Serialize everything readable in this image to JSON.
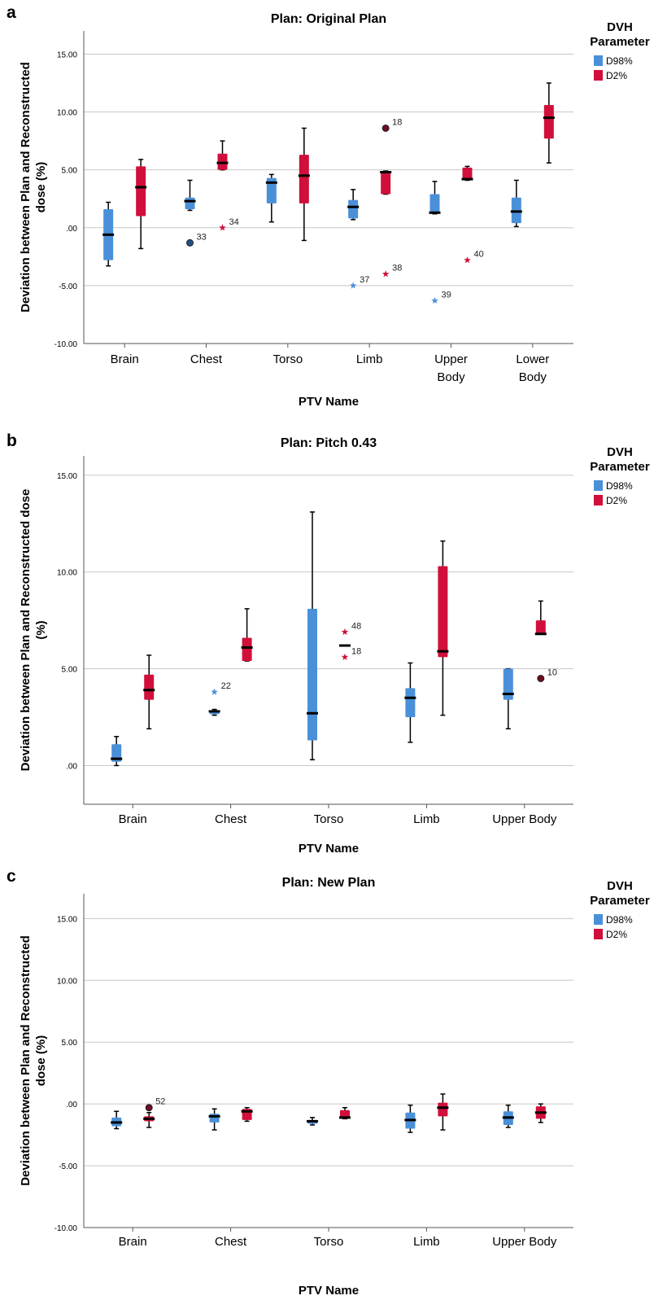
{
  "figure": {
    "colors": {
      "D98%": "#4a90d9",
      "D2%": "#d0103a",
      "grid": "#c8c8c8",
      "axis": "#555555"
    }
  },
  "chart_data": [
    {
      "panel_label": "a",
      "title": "Plan: Original Plan",
      "type": "box",
      "xlabel": "PTV Name",
      "ylabel": "Deviation between Plan and Reconstructed dose (%)",
      "ylabel_lines": [
        "Deviation between Plan and Reconstructed",
        "dose (%)"
      ],
      "ylim": [
        -10,
        17
      ],
      "yticks": [
        15,
        10,
        5,
        0,
        -5,
        -10
      ],
      "ytick_labels": [
        "15.00",
        "10.00",
        "5.00",
        ".00",
        "-5.00",
        "-10.00"
      ],
      "grid": true,
      "legend": {
        "title_lines": [
          "DVH",
          "Parameter"
        ],
        "entries": [
          "D98%",
          "D2%"
        ],
        "placement": "right"
      },
      "categories": [
        [
          "Brain"
        ],
        [
          "Chest"
        ],
        [
          "Torso"
        ],
        [
          "Limb"
        ],
        [
          "Upper",
          "Body"
        ],
        [
          "Lower",
          "Body"
        ]
      ],
      "series": [
        {
          "name": "D98%",
          "boxes": [
            {
              "min": -3.3,
              "q1": -2.8,
              "median": -0.6,
              "q3": 1.6,
              "max": 2.2,
              "outliers": []
            },
            {
              "min": 1.5,
              "q1": 1.6,
              "median": 2.3,
              "q3": 2.6,
              "max": 4.1,
              "outliers": [
                {
                  "value": -1.3,
                  "label": "33",
                  "marker": "circle"
                }
              ]
            },
            {
              "min": 0.5,
              "q1": 2.1,
              "median": 3.9,
              "q3": 4.3,
              "max": 4.6,
              "outliers": []
            },
            {
              "min": 0.7,
              "q1": 0.8,
              "median": 1.8,
              "q3": 2.4,
              "max": 3.3,
              "outliers": [
                {
                  "value": -5.0,
                  "label": "37",
                  "marker": "star"
                }
              ]
            },
            {
              "min": 1.2,
              "q1": 1.3,
              "median": 1.3,
              "q3": 2.9,
              "max": 4.0,
              "outliers": [
                {
                  "value": -6.3,
                  "label": "39",
                  "marker": "star"
                }
              ]
            },
            {
              "min": 0.1,
              "q1": 0.4,
              "median": 1.4,
              "q3": 2.6,
              "max": 4.1,
              "outliers": []
            }
          ]
        },
        {
          "name": "D2%",
          "boxes": [
            {
              "min": -1.8,
              "q1": 1.0,
              "median": 3.5,
              "q3": 5.3,
              "max": 5.9,
              "outliers": []
            },
            {
              "min": 5.0,
              "q1": 5.0,
              "median": 5.6,
              "q3": 6.4,
              "max": 7.5,
              "outliers": [
                {
                  "value": 0.0,
                  "label": "34",
                  "marker": "star"
                }
              ]
            },
            {
              "min": -1.1,
              "q1": 2.1,
              "median": 4.5,
              "q3": 6.3,
              "max": 8.6,
              "outliers": []
            },
            {
              "min": 2.9,
              "q1": 2.9,
              "median": 4.8,
              "q3": 4.9,
              "max": 4.9,
              "outliers": [
                {
                  "value": 8.6,
                  "label": "18",
                  "marker": "circle"
                },
                {
                  "value": -4.0,
                  "label": "38",
                  "marker": "star"
                }
              ]
            },
            {
              "min": 4.1,
              "q1": 4.1,
              "median": 4.2,
              "q3": 5.2,
              "max": 5.3,
              "outliers": [
                {
                  "value": -2.8,
                  "label": "40",
                  "marker": "star"
                }
              ]
            },
            {
              "min": 5.6,
              "q1": 7.7,
              "median": 9.5,
              "q3": 10.6,
              "max": 12.5,
              "outliers": []
            }
          ]
        }
      ]
    },
    {
      "panel_label": "b",
      "title": "Plan: Pitch 0.43",
      "type": "box",
      "xlabel": "PTV Name",
      "ylabel": "Deviation between Plan and Reconstructed dose (%)",
      "ylabel_lines": [
        "Deviation between Plan and Reconstructed dose",
        "(%)"
      ],
      "ylim": [
        -2,
        16
      ],
      "yticks": [
        15,
        10,
        5,
        0
      ],
      "ytick_labels": [
        "15.00",
        "10.00",
        "5.00",
        ".00"
      ],
      "grid": true,
      "legend": {
        "title_lines": [
          "DVH",
          "Parameter"
        ],
        "entries": [
          "D98%",
          "D2%"
        ],
        "placement": "right"
      },
      "categories": [
        [
          "Brain"
        ],
        [
          "Chest"
        ],
        [
          "Torso"
        ],
        [
          "Limb"
        ],
        [
          "Upper Body"
        ]
      ],
      "series": [
        {
          "name": "D98%",
          "boxes": [
            {
              "min": 0.0,
              "q1": 0.2,
              "median": 0.35,
              "q3": 1.1,
              "max": 1.5,
              "outliers": []
            },
            {
              "min": 2.6,
              "q1": 2.65,
              "median": 2.8,
              "q3": 2.85,
              "max": 2.9,
              "outliers": [
                {
                  "value": 3.8,
                  "label": "22",
                  "marker": "star"
                }
              ]
            },
            {
              "min": 0.3,
              "q1": 1.3,
              "median": 2.7,
              "q3": 8.1,
              "max": 13.1,
              "outliers": []
            },
            {
              "min": 1.2,
              "q1": 2.5,
              "median": 3.5,
              "q3": 4.0,
              "max": 5.3,
              "outliers": []
            },
            {
              "min": 1.9,
              "q1": 3.4,
              "median": 3.7,
              "q3": 5.0,
              "max": 5.0,
              "outliers": []
            }
          ]
        },
        {
          "name": "D2%",
          "boxes": [
            {
              "min": 1.9,
              "q1": 3.4,
              "median": 3.9,
              "q3": 4.7,
              "max": 5.7,
              "outliers": []
            },
            {
              "min": 5.4,
              "q1": 5.4,
              "median": 6.1,
              "q3": 6.6,
              "max": 8.1,
              "outliers": []
            },
            {
              "min": 6.2,
              "q1": 6.2,
              "median": 6.2,
              "q3": 6.2,
              "max": 6.2,
              "outliers": [
                {
                  "value": 6.9,
                  "label": "48",
                  "marker": "star"
                },
                {
                  "value": 5.6,
                  "label": "18",
                  "marker": "star"
                }
              ]
            },
            {
              "min": 2.6,
              "q1": 5.6,
              "median": 5.9,
              "q3": 10.3,
              "max": 11.6,
              "outliers": []
            },
            {
              "min": 6.8,
              "q1": 6.8,
              "median": 6.8,
              "q3": 7.5,
              "max": 8.5,
              "outliers": [
                {
                  "value": 4.5,
                  "label": "10",
                  "marker": "circle"
                }
              ]
            }
          ]
        }
      ]
    },
    {
      "panel_label": "c",
      "title": "Plan: New Plan",
      "type": "box",
      "xlabel": "PTV Name",
      "ylabel": "Deviation between Plan and Reconstructed dose (%)",
      "ylabel_lines": [
        "Deviation between Plan and Reconstructed",
        "dose (%)"
      ],
      "ylim": [
        -10,
        17
      ],
      "yticks": [
        15,
        10,
        5,
        0,
        -5,
        -10
      ],
      "ytick_labels": [
        "15.00",
        "10.00",
        "5.00",
        ".00",
        "-5.00",
        "-10.00"
      ],
      "grid": true,
      "legend": {
        "title_lines": [
          "DVH",
          "Parameter"
        ],
        "entries": [
          "D98%",
          "D2%"
        ],
        "placement": "right"
      },
      "categories": [
        [
          "Brain"
        ],
        [
          "Chest"
        ],
        [
          "Torso"
        ],
        [
          "Limb"
        ],
        [
          "Upper Body"
        ]
      ],
      "series": [
        {
          "name": "D98%",
          "boxes": [
            {
              "min": -2.0,
              "q1": -1.8,
              "median": -1.5,
              "q3": -1.1,
              "max": -0.6,
              "outliers": []
            },
            {
              "min": -2.1,
              "q1": -1.5,
              "median": -1.0,
              "q3": -0.8,
              "max": -0.4,
              "outliers": []
            },
            {
              "min": -1.7,
              "q1": -1.6,
              "median": -1.4,
              "q3": -1.3,
              "max": -1.1,
              "outliers": []
            },
            {
              "min": -2.3,
              "q1": -2.0,
              "median": -1.3,
              "q3": -0.7,
              "max": -0.1,
              "outliers": []
            },
            {
              "min": -1.9,
              "q1": -1.7,
              "median": -1.1,
              "q3": -0.6,
              "max": -0.1,
              "outliers": []
            }
          ]
        },
        {
          "name": "D2%",
          "boxes": [
            {
              "min": -1.9,
              "q1": -1.4,
              "median": -1.2,
              "q3": -1.0,
              "max": -0.7,
              "outliers": [
                {
                  "value": -0.3,
                  "label": "52",
                  "marker": "circle"
                }
              ]
            },
            {
              "min": -1.4,
              "q1": -1.3,
              "median": -0.6,
              "q3": -0.4,
              "max": -0.3,
              "outliers": []
            },
            {
              "min": -1.2,
              "q1": -1.2,
              "median": -1.1,
              "q3": -0.5,
              "max": -0.3,
              "outliers": []
            },
            {
              "min": -2.1,
              "q1": -1.0,
              "median": -0.3,
              "q3": 0.1,
              "max": 0.8,
              "outliers": []
            },
            {
              "min": -1.5,
              "q1": -1.2,
              "median": -0.7,
              "q3": -0.2,
              "max": 0.0,
              "outliers": []
            }
          ]
        }
      ]
    }
  ]
}
